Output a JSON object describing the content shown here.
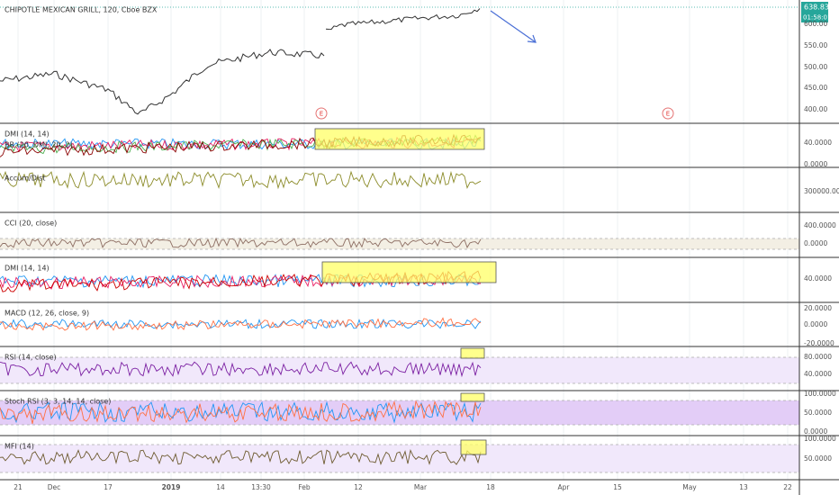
{
  "header": {
    "title": "CHIPOTLE MEXICAN GRILL, 120, Cboe BZX",
    "price_tag": "638.83",
    "timer_tag": "01:58:01"
  },
  "panels": [
    {
      "label": "DMI (14, 14)",
      "label2": "BB (20, DMI, 20, 2)",
      "ticks": [
        "40.0000",
        "0.0000"
      ]
    },
    {
      "label": "Accum/Dist",
      "ticks": [
        "300000.0000"
      ]
    },
    {
      "label": "CCI (20, close)",
      "ticks": [
        "400.0000",
        "0.0000"
      ]
    },
    {
      "label": "DMI (14, 14)",
      "ticks": [
        "40.0000"
      ]
    },
    {
      "label": "MACD (12, 26, close, 9)",
      "ticks": [
        "20.0000",
        "0.0000",
        "-20.0000"
      ]
    },
    {
      "label": "RSI (14, close)",
      "ticks": [
        "80.0000",
        "40.0000"
      ]
    },
    {
      "label": "Stoch RSI (3, 3, 14, 14, close)",
      "ticks": [
        "100.0000",
        "50.0000",
        "0.0000"
      ]
    },
    {
      "label": "MFI (14)",
      "ticks": [
        "100.0000",
        "50.0000"
      ]
    }
  ],
  "main_ticks": [
    "600.00",
    "550.00",
    "500.00",
    "450.00",
    "400.00"
  ],
  "events": [
    "E",
    "E"
  ],
  "x_labels": [
    "21",
    "Dec",
    "17",
    "2019",
    "14",
    "13:30",
    "Feb",
    "12",
    "Mar",
    "18",
    "Apr",
    "15",
    "May",
    "13",
    "22"
  ]
}
